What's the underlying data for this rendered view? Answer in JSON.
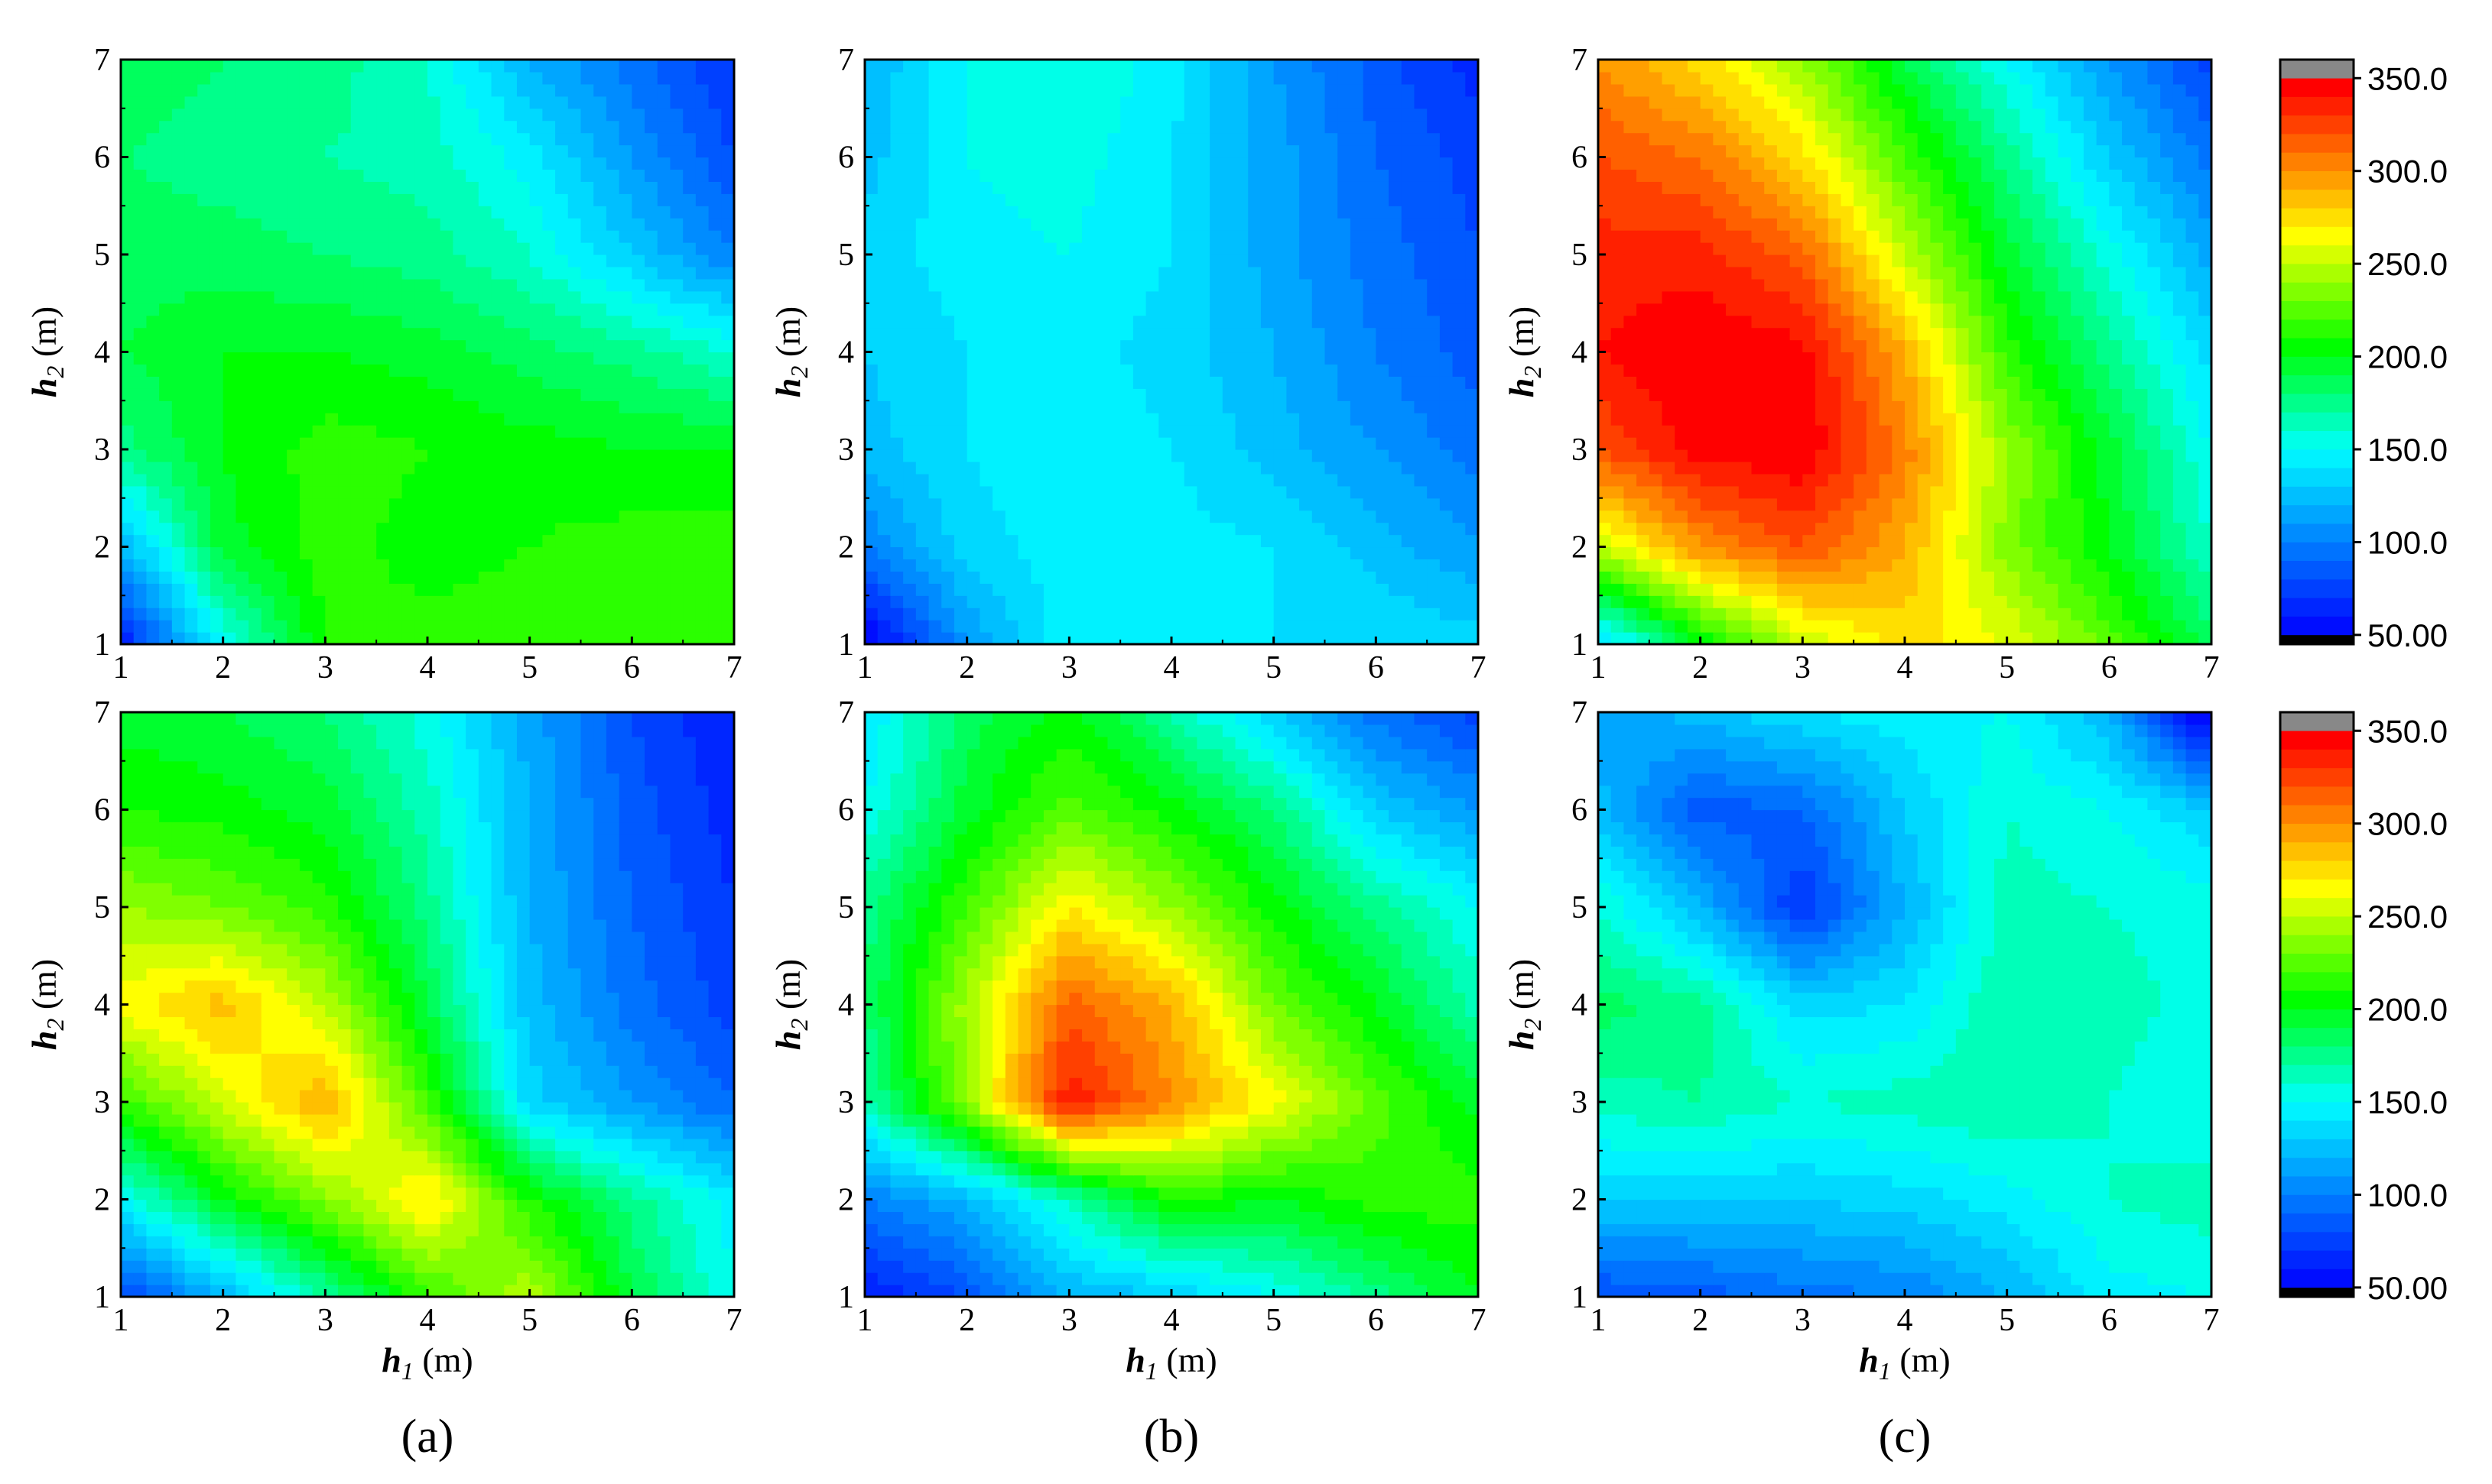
{
  "chart_data": [
    {
      "type": "heatmap",
      "panel": "a-top",
      "h2_axis_title": true,
      "h1_axis_title": false,
      "xlabel": "h1 (m)",
      "ylabel": "h2 (m)",
      "x": [
        1,
        2,
        3,
        4,
        5,
        6,
        7
      ],
      "y": [
        1,
        2,
        3,
        4,
        5,
        6,
        7
      ],
      "xlim": [
        1,
        7
      ],
      "ylim": [
        1,
        7
      ],
      "xticks": [
        "1",
        "2",
        "3",
        "4",
        "5",
        "6",
        "7"
      ],
      "yticks": [
        "1",
        "2",
        "3",
        "4",
        "5",
        "6",
        "7"
      ],
      "z": [
        [
          60,
          150,
          210,
          215,
          215,
          215,
          215
        ],
        [
          120,
          195,
          215,
          205,
          210,
          215,
          215
        ],
        [
          175,
          200,
          215,
          210,
          205,
          200,
          200
        ],
        [
          190,
          200,
          200,
          195,
          185,
          175,
          160
        ],
        [
          185,
          185,
          180,
          175,
          160,
          130,
          100
        ],
        [
          180,
          175,
          170,
          165,
          145,
          110,
          80
        ],
        [
          185,
          180,
          175,
          160,
          120,
          95,
          70
        ]
      ]
    },
    {
      "type": "heatmap",
      "panel": "b-top",
      "h2_axis_title": true,
      "h1_axis_title": false,
      "xlabel": "h1 (m)",
      "ylabel": "h2 (m)",
      "x": [
        1,
        2,
        3,
        4,
        5,
        6,
        7
      ],
      "y": [
        1,
        2,
        3,
        4,
        5,
        6,
        7
      ],
      "xlim": [
        1,
        7
      ],
      "ylim": [
        1,
        7
      ],
      "xticks": [
        "1",
        "2",
        "3",
        "4",
        "5",
        "6",
        "7"
      ],
      "yticks": [
        "1",
        "2",
        "3",
        "4",
        "5",
        "6",
        "7"
      ],
      "z": [
        [
          45,
          110,
          150,
          145,
          140,
          140,
          135
        ],
        [
          100,
          135,
          145,
          145,
          140,
          125,
          110
        ],
        [
          125,
          140,
          150,
          140,
          125,
          110,
          95
        ],
        [
          130,
          140,
          145,
          135,
          120,
          100,
          85
        ],
        [
          135,
          145,
          150,
          140,
          115,
          95,
          80
        ],
        [
          125,
          150,
          155,
          140,
          115,
          90,
          75
        ],
        [
          120,
          150,
          160,
          145,
          110,
          85,
          65
        ]
      ]
    },
    {
      "type": "heatmap",
      "panel": "c-top",
      "h2_axis_title": true,
      "h1_axis_title": false,
      "xlabel": "h1 (m)",
      "ylabel": "h2 (m)",
      "x": [
        1,
        2,
        3,
        4,
        5,
        6,
        7
      ],
      "y": [
        1,
        2,
        3,
        4,
        5,
        6,
        7
      ],
      "xlim": [
        1,
        7
      ],
      "ylim": [
        1,
        7
      ],
      "xticks": [
        "1",
        "2",
        "3",
        "4",
        "5",
        "6",
        "7"
      ],
      "yticks": [
        "1",
        "2",
        "3",
        "4",
        "5",
        "6",
        "7"
      ],
      "z": [
        [
          130,
          200,
          250,
          275,
          260,
          225,
          185
        ],
        [
          250,
          300,
          320,
          290,
          235,
          200,
          160
        ],
        [
          320,
          345,
          350,
          305,
          240,
          195,
          150
        ],
        [
          340,
          350,
          345,
          290,
          215,
          175,
          135
        ],
        [
          335,
          335,
          315,
          250,
          195,
          155,
          115
        ],
        [
          320,
          310,
          275,
          220,
          175,
          130,
          95
        ],
        [
          300,
          275,
          240,
          190,
          150,
          110,
          75
        ]
      ]
    },
    {
      "type": "heatmap",
      "panel": "a-bottom",
      "h2_axis_title": true,
      "h1_axis_title": true,
      "xlabel": "h1 (m)",
      "ylabel": "h2 (m)",
      "x": [
        1,
        2,
        3,
        4,
        5,
        6,
        7
      ],
      "y": [
        1,
        2,
        3,
        4,
        5,
        6,
        7
      ],
      "xlim": [
        1,
        7
      ],
      "ylim": [
        1,
        7
      ],
      "xticks": [
        "1",
        "2",
        "3",
        "4",
        "5",
        "6",
        "7"
      ],
      "yticks": [
        "1",
        "2",
        "3",
        "4",
        "5",
        "6",
        "7"
      ],
      "z": [
        [
          75,
          120,
          170,
          215,
          250,
          190,
          150
        ],
        [
          150,
          200,
          235,
          275,
          210,
          175,
          145
        ],
        [
          215,
          255,
          290,
          220,
          135,
          110,
          90
        ],
        [
          265,
          285,
          250,
          190,
          125,
          95,
          75
        ],
        [
          240,
          230,
          215,
          175,
          120,
          90,
          70
        ],
        [
          210,
          205,
          195,
          165,
          120,
          85,
          65
        ],
        [
          195,
          190,
          180,
          155,
          115,
          80,
          60
        ]
      ]
    },
    {
      "type": "heatmap",
      "panel": "b-bottom",
      "h2_axis_title": true,
      "h1_axis_title": true,
      "xlabel": "h1 (m)",
      "ylabel": "h2 (m)",
      "x": [
        1,
        2,
        3,
        4,
        5,
        6,
        7
      ],
      "y": [
        1,
        2,
        3,
        4,
        5,
        6,
        7
      ],
      "xlim": [
        1,
        7
      ],
      "ylim": [
        1,
        7
      ],
      "xticks": [
        "1",
        "2",
        "3",
        "4",
        "5",
        "6",
        "7"
      ],
      "yticks": [
        "1",
        "2",
        "3",
        "4",
        "5",
        "6",
        "7"
      ],
      "z": [
        [
          60,
          80,
          120,
          130,
          150,
          175,
          200
        ],
        [
          100,
          120,
          165,
          210,
          200,
          215,
          215
        ],
        [
          165,
          240,
          340,
          300,
          265,
          225,
          195
        ],
        [
          180,
          245,
          315,
          290,
          230,
          200,
          165
        ],
        [
          175,
          220,
          270,
          240,
          205,
          175,
          150
        ],
        [
          150,
          195,
          225,
          205,
          180,
          130,
          110
        ],
        [
          140,
          185,
          205,
          170,
          130,
          95,
          75
        ]
      ]
    },
    {
      "type": "heatmap",
      "panel": "c-bottom",
      "h2_axis_title": true,
      "h1_axis_title": true,
      "xlabel": "h1 (m)",
      "ylabel": "h2 (m)",
      "x": [
        1,
        2,
        3,
        4,
        5,
        6,
        7
      ],
      "y": [
        1,
        2,
        3,
        4,
        5,
        6,
        7
      ],
      "xlim": [
        1,
        7
      ],
      "ylim": [
        1,
        7
      ],
      "xticks": [
        "1",
        "2",
        "3",
        "4",
        "5",
        "6",
        "7"
      ],
      "yticks": [
        "1",
        "2",
        "3",
        "4",
        "5",
        "6",
        "7"
      ],
      "z": [
        [
          80,
          85,
          95,
          100,
          120,
          145,
          150
        ],
        [
          130,
          130,
          130,
          135,
          145,
          160,
          165
        ],
        [
          165,
          170,
          160,
          165,
          170,
          160,
          150
        ],
        [
          185,
          175,
          135,
          140,
          170,
          165,
          155
        ],
        [
          160,
          120,
          70,
          120,
          165,
          160,
          155
        ],
        [
          125,
          85,
          90,
          130,
          160,
          150,
          130
        ],
        [
          110,
          125,
          140,
          145,
          150,
          120,
          40
        ]
      ]
    }
  ],
  "colorbar": {
    "min": 45,
    "max": 360,
    "ticks": [
      {
        "value": 350,
        "label": "350.0"
      },
      {
        "value": 300,
        "label": "300.0"
      },
      {
        "value": 250,
        "label": "250.0"
      },
      {
        "value": 200,
        "label": "200.0"
      },
      {
        "value": 150,
        "label": "150.0"
      },
      {
        "value": 100,
        "label": "100.0"
      },
      {
        "value": 50,
        "label": "50.00"
      }
    ],
    "over_color": "#888888",
    "under_color": "#000000"
  },
  "axis_titles": {
    "h2_main": "h",
    "h2_sub": "2",
    "h2_unit": " (m)",
    "h1_main": "h",
    "h1_sub": "1",
    "h1_unit": " (m)"
  },
  "panel_labels": [
    "(a)",
    "(b)",
    "(c)"
  ],
  "colormap": [
    "#000000",
    "#0000ff",
    "#00ffff",
    "#00ff00",
    "#ffff00",
    "#ff0000",
    "#888888"
  ]
}
